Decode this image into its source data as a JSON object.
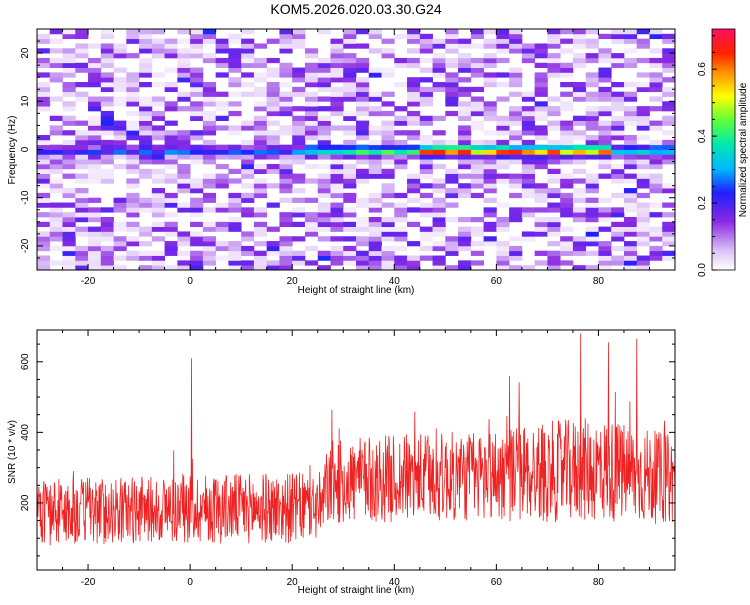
{
  "chart_data": [
    {
      "type": "heatmap",
      "title": "KOM5.2026.020.03.30.G24",
      "xlabel": "Height of straight line (km)",
      "ylabel": "Frequency (Hz)",
      "xlim": [
        -30,
        95
      ],
      "ylim": [
        -25,
        25
      ],
      "xticks": [
        -20,
        0,
        20,
        40,
        60,
        80
      ],
      "yticks": [
        -20,
        -10,
        0,
        10,
        20
      ],
      "colorbar": {
        "label": "Normalized spectral amplitude",
        "range": [
          0,
          0.72
        ],
        "ticks": [
          0.0,
          0.2,
          0.4,
          0.6
        ]
      },
      "ridge": {
        "frequency_hz": 0,
        "strongest_height_range_km": [
          45,
          80
        ],
        "peak_amplitude": 0.7
      },
      "colors": {
        "low": "#e8d5fa",
        "mid_low": "#7a1fe0",
        "mid": "#00d4ff",
        "mid_high": "#9cff3a",
        "high": "#ff2a00",
        "top": "#ff1a50"
      }
    },
    {
      "type": "line",
      "xlabel": "Height of straight line (km)",
      "ylabel": "SNR (10 * v/v)",
      "xlim": [
        -30,
        95
      ],
      "ylim": [
        10,
        690
      ],
      "xticks": [
        -20,
        0,
        20,
        40,
        60,
        80
      ],
      "yticks": [
        200,
        400,
        600
      ],
      "series": [
        {
          "name": "SNR",
          "color": "#ee2222",
          "envelope_x": [
            -30,
            -20,
            -10,
            0,
            10,
            20,
            26,
            27,
            40,
            55,
            65,
            80,
            90,
            95
          ],
          "envelope_mean": [
            175,
            175,
            180,
            185,
            185,
            185,
            190,
            255,
            270,
            275,
            285,
            295,
            275,
            265
          ],
          "envelope_spread": [
            95,
            95,
            95,
            100,
            100,
            100,
            100,
            120,
            125,
            130,
            140,
            150,
            135,
            125
          ],
          "peaks": [
            {
              "x": 0.3,
              "y": 610
            },
            {
              "x": 76.5,
              "y": 680
            },
            {
              "x": 87.5,
              "y": 665
            },
            {
              "x": 82.0,
              "y": 655
            }
          ]
        }
      ]
    }
  ]
}
